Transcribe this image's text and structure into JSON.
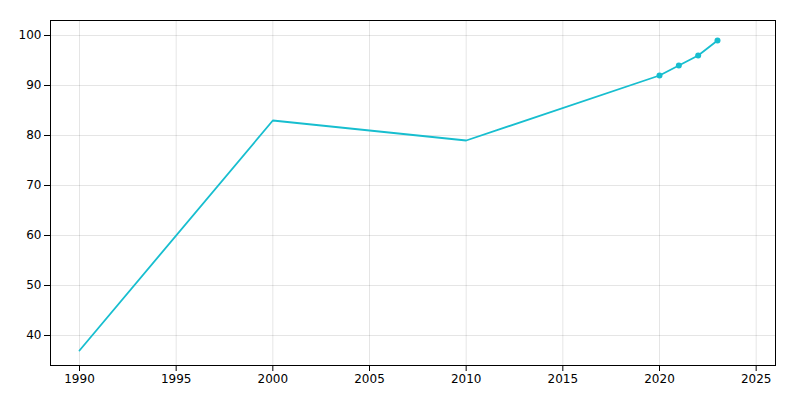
{
  "chart_data": {
    "type": "line",
    "x": [
      1990,
      2000,
      2005,
      2010,
      2020,
      2021,
      2022,
      2023
    ],
    "values": [
      37,
      83,
      81,
      79,
      92,
      94,
      96,
      99
    ],
    "color": "#17becf",
    "marker": "circle",
    "marker_x": [
      2020,
      2021,
      2022,
      2023
    ],
    "xlim": [
      1988.5,
      2026
    ],
    "ylim": [
      34,
      103
    ],
    "xticks": [
      1990,
      1995,
      2000,
      2005,
      2010,
      2015,
      2020,
      2025
    ],
    "yticks": [
      40,
      50,
      60,
      70,
      80,
      90,
      100
    ],
    "grid": true
  }
}
